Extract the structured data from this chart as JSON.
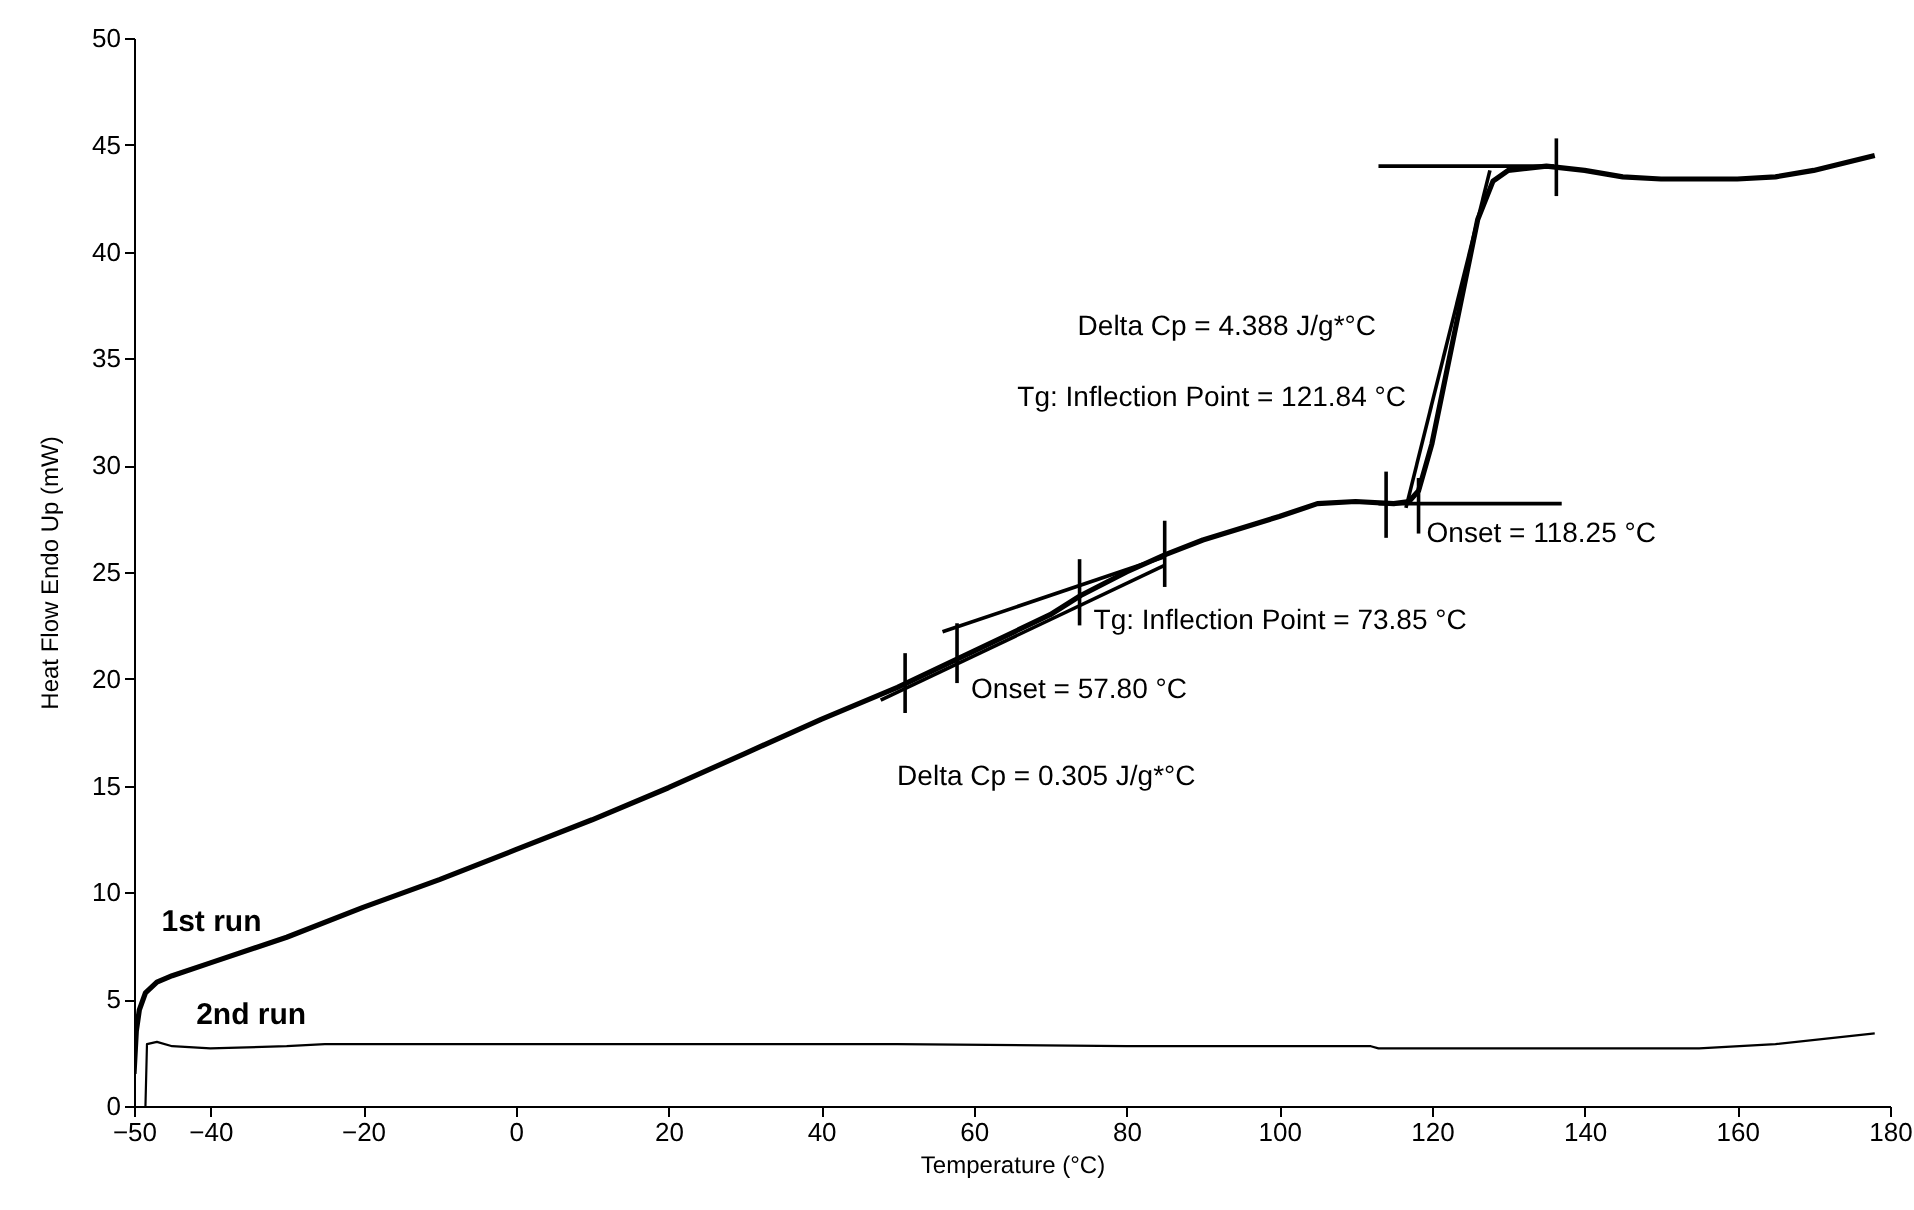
{
  "chart_data": {
    "type": "line",
    "xlabel": "Temperature (°C)",
    "ylabel": "Heat Flow Endo Up (mW)",
    "xlim": [
      -50,
      180
    ],
    "xticks": [
      -50,
      -40,
      -20,
      0,
      20,
      40,
      60,
      80,
      100,
      120,
      140,
      160,
      180
    ],
    "ylim": [
      0,
      50
    ],
    "yticks": [
      0,
      5,
      10,
      15,
      20,
      25,
      30,
      35,
      40,
      45,
      50
    ],
    "grid": false,
    "marker": "none",
    "line_style": "solid",
    "series": [
      {
        "name": "1st run",
        "color": "#000000",
        "x": [
          -50,
          -49.7,
          -49.3,
          -48.5,
          -47,
          -45,
          -40,
          -30,
          -20,
          -10,
          0,
          10,
          20,
          30,
          40,
          50,
          60,
          70,
          74,
          80,
          85,
          90,
          100,
          105,
          110,
          115,
          117,
          118.25,
          120,
          122,
          124,
          126,
          128,
          130,
          135,
          140,
          145,
          150,
          160,
          165,
          170,
          178
        ],
        "values": [
          1.5,
          3.5,
          4.5,
          5.3,
          5.8,
          6.1,
          6.7,
          7.9,
          9.3,
          10.6,
          12.0,
          13.4,
          14.9,
          16.5,
          18.1,
          19.6,
          21.3,
          23.0,
          23.9,
          25.0,
          25.8,
          26.5,
          27.6,
          28.2,
          28.3,
          28.2,
          28.3,
          28.8,
          31.0,
          34.5,
          38.0,
          41.5,
          43.3,
          43.8,
          44.0,
          43.8,
          43.5,
          43.4,
          43.4,
          43.5,
          43.8,
          44.5
        ]
      },
      {
        "name": "2nd run",
        "color": "#000000",
        "x": [
          -48.5,
          -48.3,
          -47,
          -45,
          -40,
          -30,
          -25,
          0,
          50,
          80,
          100,
          112,
          113,
          140,
          155,
          165,
          178
        ],
        "values": [
          0,
          2.9,
          3.0,
          2.8,
          2.7,
          2.8,
          2.9,
          2.9,
          2.9,
          2.8,
          2.8,
          2.8,
          2.7,
          2.7,
          2.7,
          2.9,
          3.4
        ]
      },
      {
        "type": "line",
        "color": "#000000",
        "x": [
          113,
          137
        ],
        "values": [
          28.2,
          28.2
        ]
      },
      {
        "type": "line",
        "color": "#000000",
        "x": [
          113,
          136
        ],
        "values": [
          44.0,
          44.0
        ]
      },
      {
        "type": "line",
        "color": "#000000",
        "x": [
          116.6,
          127.6
        ],
        "values": [
          28.0,
          43.8
        ]
      },
      {
        "type": "line",
        "color": "#000000",
        "x": [
          55.9,
          84.9
        ],
        "values": [
          22.2,
          25.7
        ]
      },
      {
        "type": "line",
        "color": "#000000",
        "x": [
          47.8,
          84.9
        ],
        "values": [
          19.0,
          25.3
        ]
      },
      {
        "type": "line",
        "color": "#000000",
        "x": [
          51,
          51
        ],
        "values": [
          18.4,
          21.2
        ]
      },
      {
        "type": "line",
        "color": "#000000",
        "x": [
          57.8,
          57.8
        ],
        "values": [
          19.8,
          22.6
        ]
      },
      {
        "type": "line",
        "color": "#000000",
        "x": [
          73.85,
          73.85
        ],
        "values": [
          22.5,
          25.6
        ]
      },
      {
        "type": "line",
        "color": "#000000",
        "x": [
          85,
          85
        ],
        "values": [
          24.3,
          27.4
        ]
      },
      {
        "type": "line",
        "color": "#000000",
        "x": [
          114,
          114
        ],
        "values": [
          26.6,
          29.7
        ]
      },
      {
        "type": "line",
        "color": "#000000",
        "x": [
          118.25,
          118.25
        ],
        "values": [
          26.8,
          29.4
        ]
      },
      {
        "type": "line",
        "color": "#000000",
        "x": [
          136.3,
          136.3
        ],
        "values": [
          42.6,
          45.3
        ]
      }
    ],
    "annotations": [
      {
        "text": "Delta Cp = 4.388 J/g*°C",
        "x": 121.84,
        "y": 36
      },
      {
        "text": "Tg: Inflection Point = 121.84 °C",
        "x": 121.84,
        "y": 34
      },
      {
        "text": "Onset = 118.25 °C",
        "x": 118.25,
        "y": 28.2
      },
      {
        "text": "Tg: Inflection Point = 73.85 °C",
        "x": 73.85,
        "y": 23.9
      },
      {
        "text": "Onset = 57.80 °C",
        "x": 57.8,
        "y": 20.6
      },
      {
        "text": "Delta Cp = 0.305 J/g*°C",
        "x": 51,
        "y": 19.7
      }
    ]
  }
}
